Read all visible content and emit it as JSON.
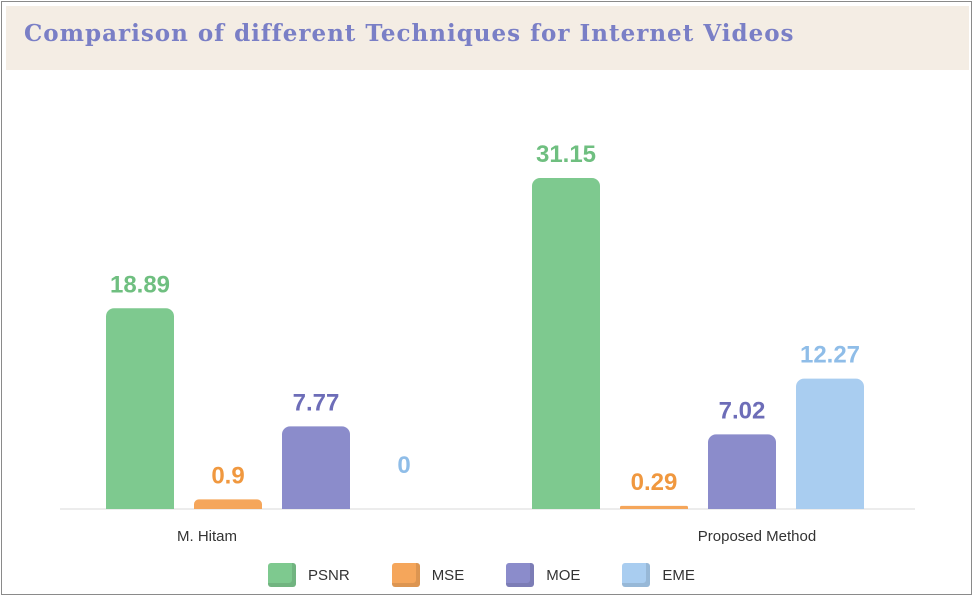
{
  "chart_data": {
    "type": "bar",
    "title": "Comparison of different Techniques for Internet Videos",
    "categories": [
      "M. Hitam",
      "Proposed Method"
    ],
    "series": [
      {
        "name": "PSNR",
        "color": "#7ec98f",
        "values": [
          18.89,
          31.15
        ]
      },
      {
        "name": "MSE",
        "color": "#f5a65b",
        "values": [
          0.9,
          0.29
        ]
      },
      {
        "name": "MOE",
        "color": "#8b8ccb",
        "values": [
          7.77,
          7.02
        ]
      },
      {
        "name": "EME",
        "color": "#a9cdf0",
        "values": [
          0,
          12.27
        ]
      }
    ],
    "data_labels": [
      [
        "18.89",
        "0.9",
        "7.77",
        "0"
      ],
      [
        "31.15",
        "0.29",
        "7.02",
        "12.27"
      ]
    ],
    "label_colors": [
      "#6fbf80",
      "#f0983f",
      "#6d6db8",
      "#8fbde8"
    ],
    "xlabel": "",
    "ylabel": "",
    "ylim": [
      0,
      34
    ],
    "grid": false,
    "legend_position": "bottom"
  }
}
